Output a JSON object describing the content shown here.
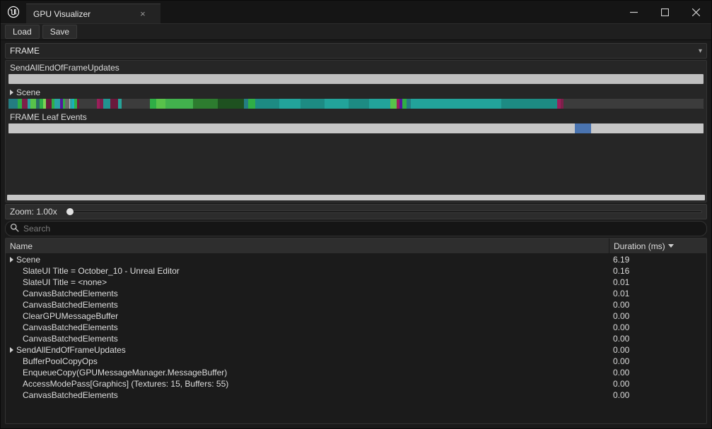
{
  "window": {
    "title": "GPU Visualizer"
  },
  "toolbar": {
    "load_label": "Load",
    "save_label": "Save"
  },
  "frame_dropdown": {
    "value": "FRAME"
  },
  "tracks": {
    "track1": {
      "label": "SendAllEndOfFrameUpdates",
      "segments": []
    },
    "track2": {
      "label": "Scene",
      "segments": [
        {
          "start": 0.0,
          "width": 1.3,
          "color": "#247d82"
        },
        {
          "start": 1.3,
          "width": 0.6,
          "color": "#2fae46"
        },
        {
          "start": 1.9,
          "width": 0.8,
          "color": "#7d1f4a"
        },
        {
          "start": 2.7,
          "width": 0.5,
          "color": "#2aa3a3"
        },
        {
          "start": 3.2,
          "width": 0.8,
          "color": "#58c24a"
        },
        {
          "start": 4.0,
          "width": 0.5,
          "color": "#2b6b64"
        },
        {
          "start": 4.5,
          "width": 0.5,
          "color": "#2fae46"
        },
        {
          "start": 5.0,
          "width": 0.4,
          "color": "#7ed156"
        },
        {
          "start": 5.4,
          "width": 0.8,
          "color": "#6a1a3c"
        },
        {
          "start": 6.2,
          "width": 0.4,
          "color": "#2fae46"
        },
        {
          "start": 6.6,
          "width": 0.8,
          "color": "#2aa3a3"
        },
        {
          "start": 7.4,
          "width": 0.4,
          "color": "#52179e"
        },
        {
          "start": 7.8,
          "width": 0.3,
          "color": "#2fae46"
        },
        {
          "start": 8.1,
          "width": 0.7,
          "color": "#6a6a6a"
        },
        {
          "start": 8.8,
          "width": 0.4,
          "color": "#2aa3a3"
        },
        {
          "start": 9.2,
          "width": 0.3,
          "color": "#19b2b8"
        },
        {
          "start": 9.5,
          "width": 0.4,
          "color": "#2fae46"
        },
        {
          "start": 9.9,
          "width": 0.3,
          "color": "#6a1a3c"
        },
        {
          "start": 10.2,
          "width": 2.5,
          "color": "#3c3c3c"
        },
        {
          "start": 12.7,
          "width": 0.4,
          "color": "#9a1f5a"
        },
        {
          "start": 13.1,
          "width": 0.5,
          "color": "#7d1f4a"
        },
        {
          "start": 13.6,
          "width": 1.0,
          "color": "#22938f"
        },
        {
          "start": 14.6,
          "width": 1.2,
          "color": "#6a1a3c"
        },
        {
          "start": 15.8,
          "width": 0.5,
          "color": "#26a398"
        },
        {
          "start": 16.3,
          "width": 4.0,
          "color": "#3c3c3c"
        },
        {
          "start": 20.3,
          "width": 1.0,
          "color": "#2fae46"
        },
        {
          "start": 21.3,
          "width": 1.3,
          "color": "#58c24a"
        },
        {
          "start": 22.6,
          "width": 4.0,
          "color": "#42b14d"
        },
        {
          "start": 26.6,
          "width": 3.5,
          "color": "#2d7c2f"
        },
        {
          "start": 30.1,
          "width": 3.8,
          "color": "#1e5120"
        },
        {
          "start": 33.9,
          "width": 0.6,
          "color": "#247d82"
        },
        {
          "start": 34.5,
          "width": 1.0,
          "color": "#2fae46"
        },
        {
          "start": 35.5,
          "width": 3.5,
          "color": "#1d8b83"
        },
        {
          "start": 39.0,
          "width": 3.0,
          "color": "#22a39a"
        },
        {
          "start": 42.0,
          "width": 3.5,
          "color": "#1d8b83"
        },
        {
          "start": 45.5,
          "width": 3.4,
          "color": "#22a39a"
        },
        {
          "start": 48.9,
          "width": 3.0,
          "color": "#1d8b83"
        },
        {
          "start": 51.9,
          "width": 3.0,
          "color": "#22a39a"
        },
        {
          "start": 54.9,
          "width": 1.0,
          "color": "#58c24a"
        },
        {
          "start": 55.9,
          "width": 0.4,
          "color": "#9a1f5a"
        },
        {
          "start": 56.3,
          "width": 0.4,
          "color": "#52179e"
        },
        {
          "start": 56.7,
          "width": 0.6,
          "color": "#2fae46"
        },
        {
          "start": 57.3,
          "width": 0.6,
          "color": "#247d82"
        },
        {
          "start": 57.9,
          "width": 13.0,
          "color": "#22a39a"
        },
        {
          "start": 70.9,
          "width": 8.0,
          "color": "#1d8b83"
        },
        {
          "start": 78.9,
          "width": 0.6,
          "color": "#9a1f5a"
        },
        {
          "start": 79.5,
          "width": 0.4,
          "color": "#7d1f4a"
        },
        {
          "start": 79.9,
          "width": 20.1,
          "color": "#3c3c3c"
        }
      ]
    },
    "track3": {
      "label": "FRAME Leaf Events",
      "segments": [
        {
          "start": 0.0,
          "width": 81.5,
          "color": "#c6c6c6"
        },
        {
          "start": 81.5,
          "width": 2.3,
          "color": "#4a74b0"
        },
        {
          "start": 83.8,
          "width": 16.2,
          "color": "#c6c6c6"
        }
      ]
    }
  },
  "zoom": {
    "label": "Zoom: 1.00x",
    "thumb_percent": 0
  },
  "search": {
    "placeholder": "Search"
  },
  "table": {
    "col_name": "Name",
    "col_duration": "Duration (ms)",
    "rows": [
      {
        "name": "Scene",
        "dur": "6.19",
        "expandable": true,
        "indent": 0
      },
      {
        "name": "SlateUI Title = October_10 - Unreal Editor",
        "dur": "0.16",
        "indent": 1
      },
      {
        "name": "SlateUI Title = <none>",
        "dur": "0.01",
        "indent": 1
      },
      {
        "name": "CanvasBatchedElements",
        "dur": "0.01",
        "indent": 1
      },
      {
        "name": "CanvasBatchedElements",
        "dur": "0.00",
        "indent": 1
      },
      {
        "name": "ClearGPUMessageBuffer",
        "dur": "0.00",
        "indent": 1
      },
      {
        "name": "CanvasBatchedElements",
        "dur": "0.00",
        "indent": 1
      },
      {
        "name": "CanvasBatchedElements",
        "dur": "0.00",
        "indent": 1
      },
      {
        "name": "SendAllEndOfFrameUpdates",
        "dur": "0.00",
        "expandable": true,
        "indent": 0
      },
      {
        "name": "BufferPoolCopyOps",
        "dur": "0.00",
        "indent": 1
      },
      {
        "name": "EnqueueCopy(GPUMessageManager.MessageBuffer)",
        "dur": "0.00",
        "indent": 1
      },
      {
        "name": "AccessModePass[Graphics] (Textures: 15, Buffers: 55)",
        "dur": "0.00",
        "indent": 1
      },
      {
        "name": "CanvasBatchedElements",
        "dur": "0.00",
        "indent": 1
      }
    ]
  }
}
